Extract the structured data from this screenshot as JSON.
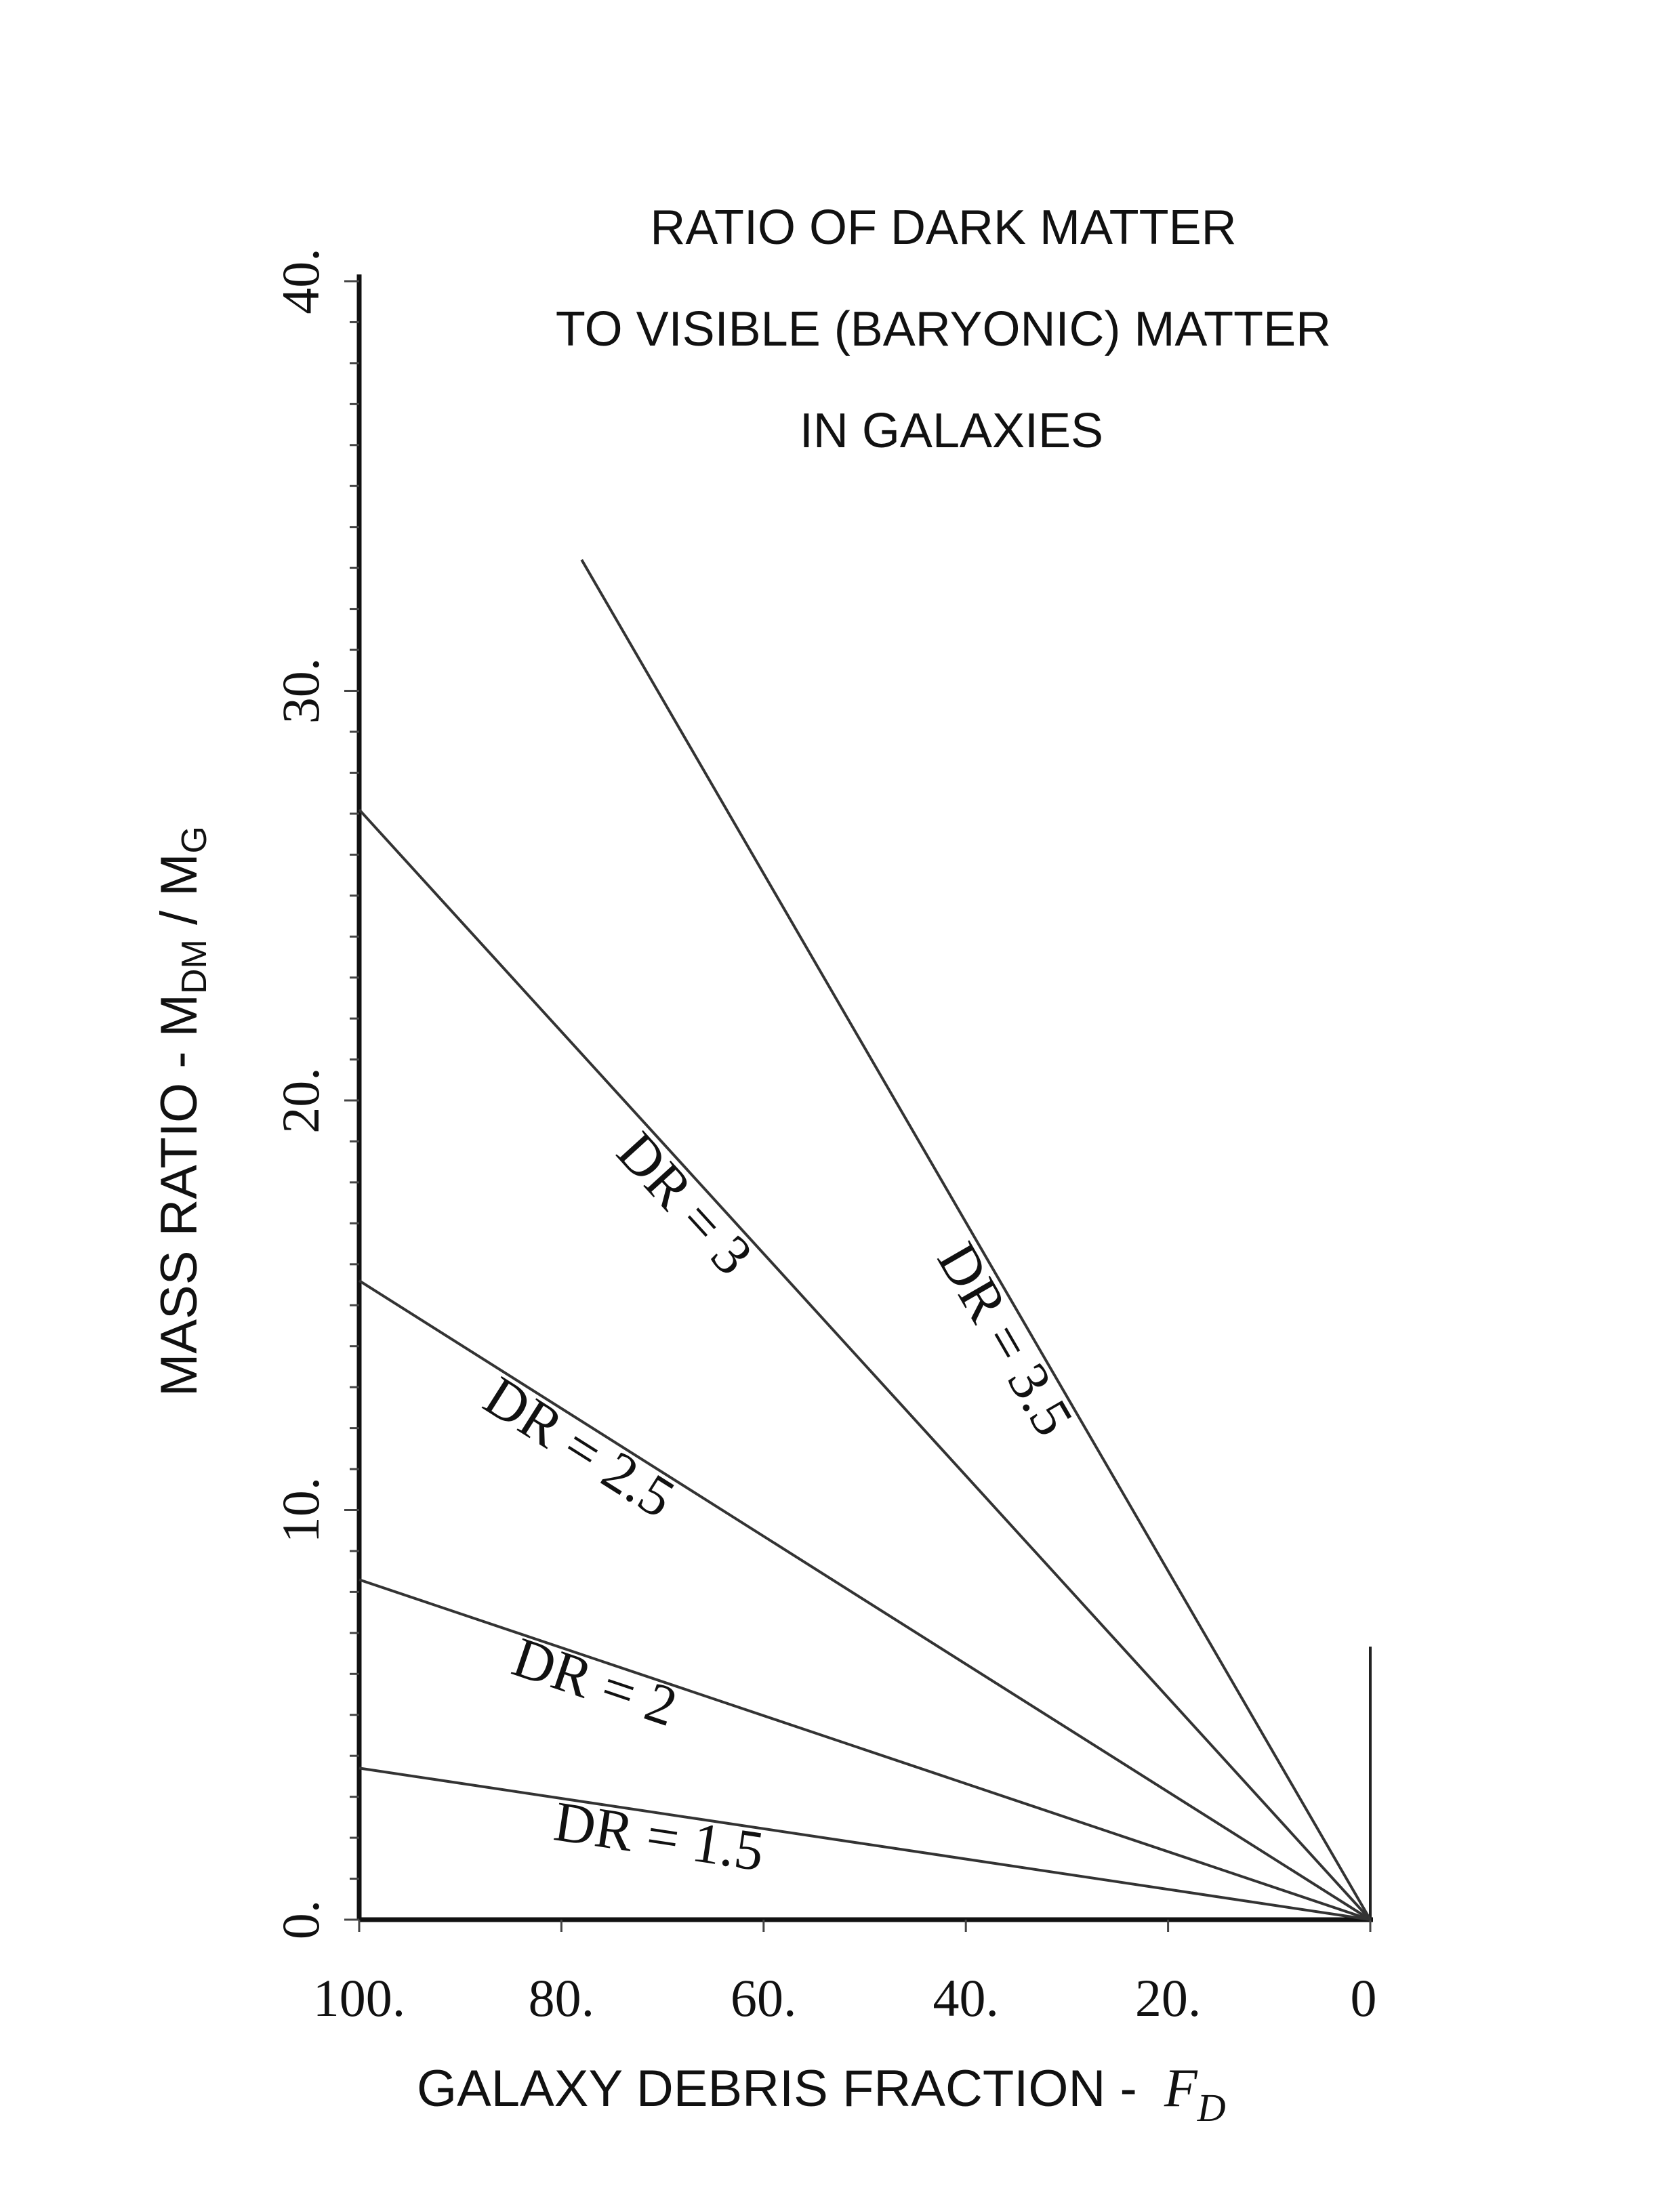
{
  "chart_data": {
    "type": "line",
    "title": [
      "RATIO OF DARK  MATTER",
      "TO VISIBLE (BARYONIC) MATTER",
      "IN GALAXIES"
    ],
    "xlabel": "GALAXY DEBRIS FRACTION   -",
    "xlabel_symbol": "F",
    "xlabel_symbol_sub": "D",
    "ylabel": "MASS RATIO   -   M",
    "ylabel_sub1": "DM",
    "ylabel_mid": " / M",
    "ylabel_sub2": "G",
    "xlim": [
      100,
      0
    ],
    "ylim": [
      0,
      40
    ],
    "x_ticks": [
      100,
      80,
      60,
      40,
      20,
      0
    ],
    "x_tick_labels": [
      "100.",
      "80.",
      "60.",
      "40.",
      "20.",
      "0"
    ],
    "y_ticks": [
      0,
      10,
      20,
      30,
      40
    ],
    "y_tick_labels": [
      "0.",
      "10.",
      "20.",
      "30.",
      "40."
    ],
    "grid": false,
    "series": [
      {
        "name": "DR = 1.5",
        "x": [
          100,
          0
        ],
        "y": [
          3.7,
          0
        ]
      },
      {
        "name": "DR = 2",
        "x": [
          100,
          0
        ],
        "y": [
          8.3,
          0
        ]
      },
      {
        "name": "DR = 2.5",
        "x": [
          100,
          0
        ],
        "y": [
          15.6,
          0
        ]
      },
      {
        "name": "DR = 3",
        "x": [
          100,
          0
        ],
        "y": [
          27.1,
          0
        ]
      },
      {
        "name": "DR = 3.5",
        "x": [
          78,
          0
        ],
        "y": [
          33.2,
          0
        ]
      }
    ]
  }
}
